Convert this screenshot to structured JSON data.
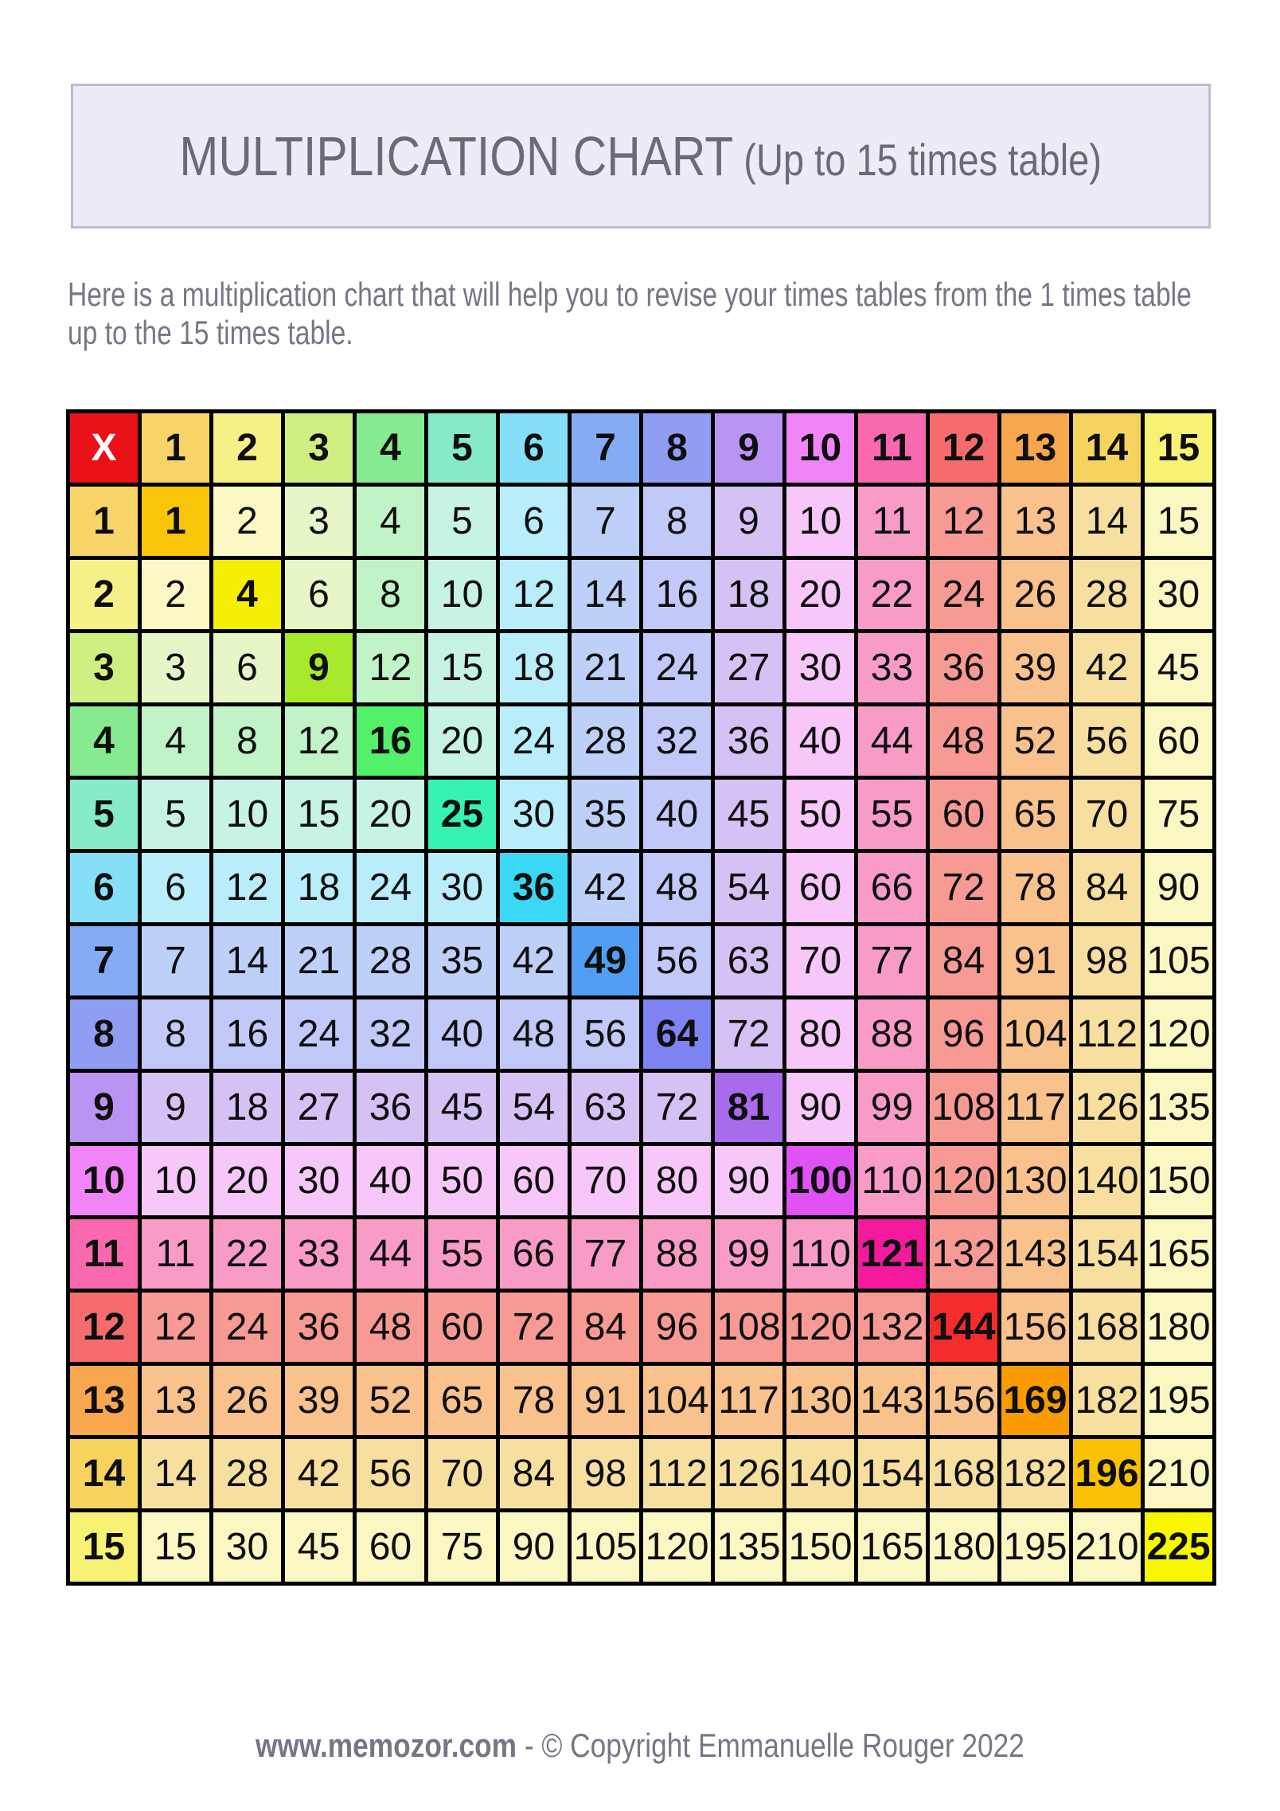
{
  "title": {
    "main": "MULTIPLICATION CHART",
    "suffix": " (Up to 15 times table)"
  },
  "intro": {
    "lines": [
      "Here is a multiplication chart that will help you to revise your times tables from the 1 times table",
      "up to the 15 times table."
    ]
  },
  "footer": {
    "site": "www.memozor.com",
    "separator": " - ",
    "copyright": "© Copyright Emmanuelle Rouger 2022"
  },
  "chart": {
    "type": "table",
    "corner_label": "X",
    "factors": [
      1,
      2,
      3,
      4,
      5,
      6,
      7,
      8,
      9,
      10,
      11,
      12,
      13,
      14,
      15
    ],
    "rows": [
      [
        1,
        2,
        3,
        4,
        5,
        6,
        7,
        8,
        9,
        10,
        11,
        12,
        13,
        14,
        15
      ],
      [
        2,
        4,
        6,
        8,
        10,
        12,
        14,
        16,
        18,
        20,
        22,
        24,
        26,
        28,
        30
      ],
      [
        3,
        6,
        9,
        12,
        15,
        18,
        21,
        24,
        27,
        30,
        33,
        36,
        39,
        42,
        45
      ],
      [
        4,
        8,
        12,
        16,
        20,
        24,
        28,
        32,
        36,
        40,
        44,
        48,
        52,
        56,
        60
      ],
      [
        5,
        10,
        15,
        20,
        25,
        30,
        35,
        40,
        45,
        50,
        55,
        60,
        65,
        70,
        75
      ],
      [
        6,
        12,
        18,
        24,
        30,
        36,
        42,
        48,
        54,
        60,
        66,
        72,
        78,
        84,
        90
      ],
      [
        7,
        14,
        21,
        28,
        35,
        42,
        49,
        56,
        63,
        70,
        77,
        84,
        91,
        98,
        105
      ],
      [
        8,
        16,
        24,
        32,
        40,
        48,
        56,
        64,
        72,
        80,
        88,
        96,
        104,
        112,
        120
      ],
      [
        9,
        18,
        27,
        36,
        45,
        54,
        63,
        72,
        81,
        90,
        99,
        108,
        117,
        126,
        135
      ],
      [
        10,
        20,
        30,
        40,
        50,
        60,
        70,
        80,
        90,
        100,
        110,
        120,
        130,
        140,
        150
      ],
      [
        11,
        22,
        33,
        44,
        55,
        66,
        77,
        88,
        99,
        110,
        121,
        132,
        143,
        154,
        165
      ],
      [
        12,
        24,
        36,
        48,
        60,
        72,
        84,
        96,
        108,
        120,
        132,
        144,
        156,
        168,
        180
      ],
      [
        13,
        26,
        39,
        52,
        65,
        78,
        91,
        104,
        117,
        130,
        143,
        156,
        169,
        182,
        195
      ],
      [
        14,
        28,
        42,
        56,
        70,
        84,
        98,
        112,
        126,
        140,
        154,
        168,
        182,
        196,
        210
      ],
      [
        15,
        30,
        45,
        60,
        75,
        90,
        105,
        120,
        135,
        150,
        165,
        180,
        195,
        210,
        225
      ]
    ],
    "colors": {
      "corner_bg": "#ea1118",
      "corner_text": "#ffffff",
      "grid": "#000000",
      "cell_text": "#0e0e0e",
      "palette": [
        {
          "header": "#f7d468",
          "light": "#fbe9b4",
          "diagonal": "#f8c508"
        },
        {
          "header": "#f6f089",
          "light": "#fbf8c6",
          "diagonal": "#f4ef04"
        },
        {
          "header": "#d0ef82",
          "light": "#e6f6c7",
          "diagonal": "#a9e92c"
        },
        {
          "header": "#85ea90",
          "light": "#c0f3c6",
          "diagonal": "#52f169"
        },
        {
          "header": "#85ebca",
          "light": "#c7f3e4",
          "diagonal": "#36f3b1"
        },
        {
          "header": "#85e0f7",
          "light": "#b8edf9",
          "diagonal": "#3ad8f4"
        },
        {
          "header": "#85abf4",
          "light": "#bdd1f8",
          "diagonal": "#519ff4"
        },
        {
          "header": "#8f9ef2",
          "light": "#c2c8f7",
          "diagonal": "#7e84f1"
        },
        {
          "header": "#bb94f3",
          "light": "#d5c2f5",
          "diagonal": "#aa6aec"
        },
        {
          "header": "#f185f7",
          "light": "#f6c7f8",
          "diagonal": "#e052f3"
        },
        {
          "header": "#f869ad",
          "light": "#f89cc6",
          "diagonal": "#f41a9d"
        },
        {
          "header": "#f66c6c",
          "light": "#f89a94",
          "diagonal": "#f42c2c"
        },
        {
          "header": "#f8a74e",
          "light": "#f9c28c",
          "diagonal": "#f89b01"
        },
        {
          "header": "#f6d25f",
          "light": "#f7dfa0",
          "diagonal": "#f8c103"
        },
        {
          "header": "#f7f174",
          "light": "#faf7c2",
          "diagonal": "#f7f701"
        }
      ]
    }
  }
}
